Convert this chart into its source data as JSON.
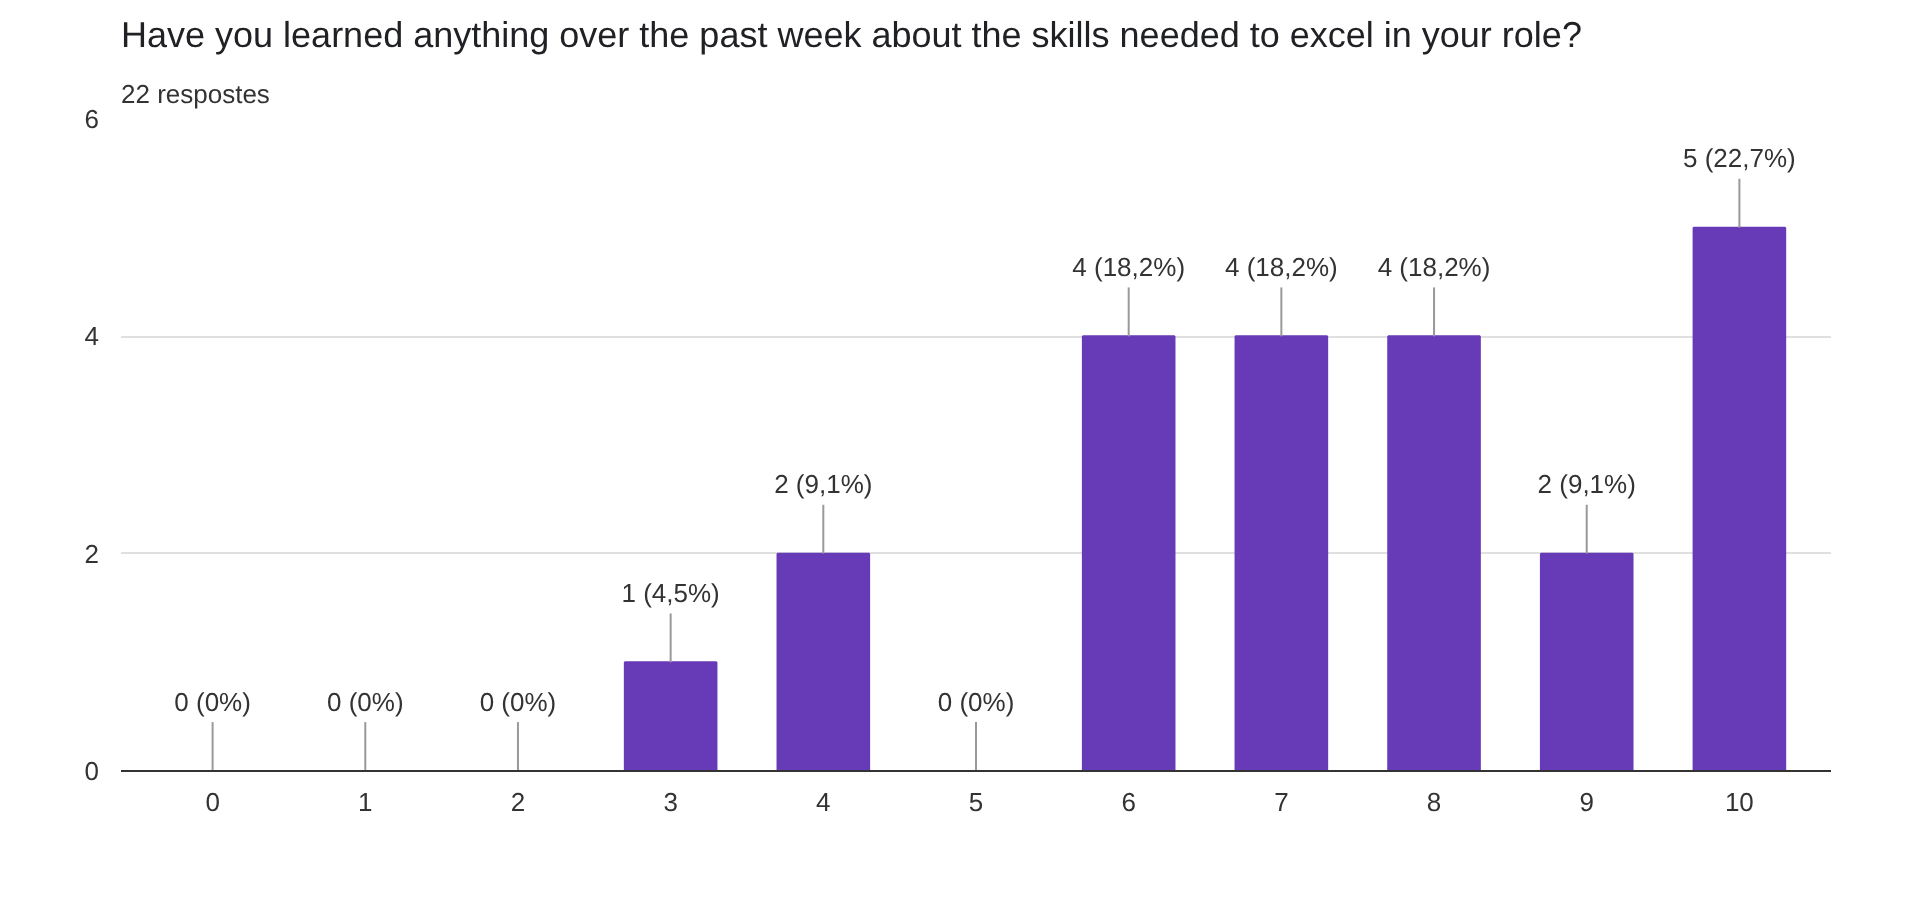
{
  "chart_data": {
    "type": "bar",
    "title": "Have you learned anything over the past week about the skills needed to excel in your role?",
    "subtitle": "22 respostes",
    "categories": [
      "0",
      "1",
      "2",
      "3",
      "4",
      "5",
      "6",
      "7",
      "8",
      "9",
      "10"
    ],
    "values": [
      0,
      0,
      0,
      1,
      2,
      0,
      4,
      4,
      4,
      2,
      5
    ],
    "value_labels": [
      "0 (0%)",
      "0 (0%)",
      "0 (0%)",
      "1 (4,5%)",
      "2 (9,1%)",
      "0 (0%)",
      "4 (18,2%)",
      "4 (18,2%)",
      "4 (18,2%)",
      "2 (9,1%)",
      "5 (22,7%)"
    ],
    "color": "#673ab7",
    "ylim": [
      0,
      6
    ],
    "yticks": [
      0,
      2,
      4,
      6
    ],
    "grid": "y"
  }
}
